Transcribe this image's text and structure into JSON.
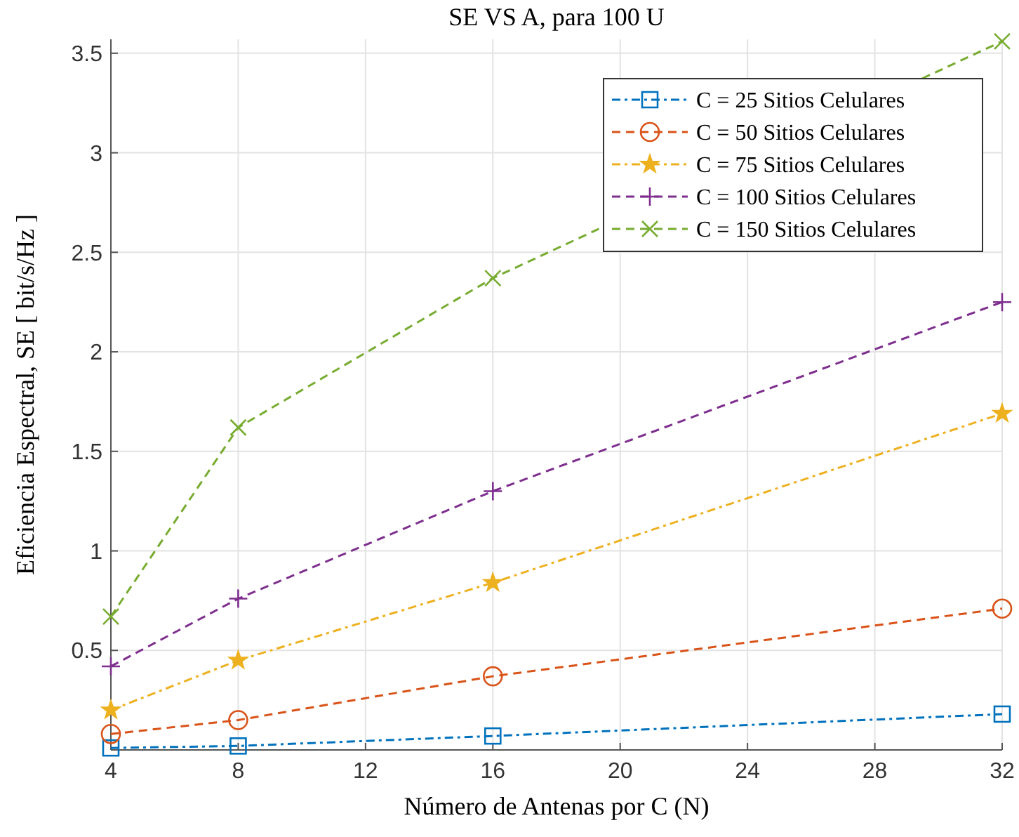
{
  "chart_data": {
    "type": "line",
    "title": "SE VS A, para 100 U",
    "xlabel": "Número de Antenas por C   (N)",
    "ylabel": "Eficiencia Espectral,  SE [ bit/s/Hz ]",
    "x": [
      4,
      8,
      16,
      32
    ],
    "series": [
      {
        "name": "C = 25 Sitios Celulares",
        "color": "#0072bd",
        "marker": "square",
        "line_style": "dashdot",
        "values": [
          0.01,
          0.02,
          0.07,
          0.18
        ]
      },
      {
        "name": "C = 50 Sitios Celulares",
        "color": "#d95319",
        "marker": "circle",
        "line_style": "dashed",
        "values": [
          0.08,
          0.15,
          0.37,
          0.71
        ]
      },
      {
        "name": "C = 75 Sitios Celulares",
        "color": "#edb120",
        "marker": "star",
        "line_style": "dashdot",
        "values": [
          0.2,
          0.45,
          0.84,
          1.69
        ]
      },
      {
        "name": "C = 100 Sitios Celulares",
        "color": "#7e2f8e",
        "marker": "plus",
        "line_style": "dashed",
        "values": [
          0.42,
          0.76,
          1.3,
          2.25
        ]
      },
      {
        "name": "C = 150 Sitios Celulares",
        "color": "#77ac30",
        "marker": "cross",
        "line_style": "dashed",
        "values": [
          0.67,
          1.62,
          2.37,
          3.56
        ]
      }
    ],
    "xlim": [
      4,
      32
    ],
    "xticks": [
      4,
      8,
      12,
      16,
      20,
      24,
      28,
      32
    ],
    "ylim": [
      0,
      3.57
    ],
    "yticks": [
      0.5,
      1,
      1.5,
      2,
      2.5,
      3,
      3.5
    ],
    "grid": true,
    "legend": "top right"
  }
}
